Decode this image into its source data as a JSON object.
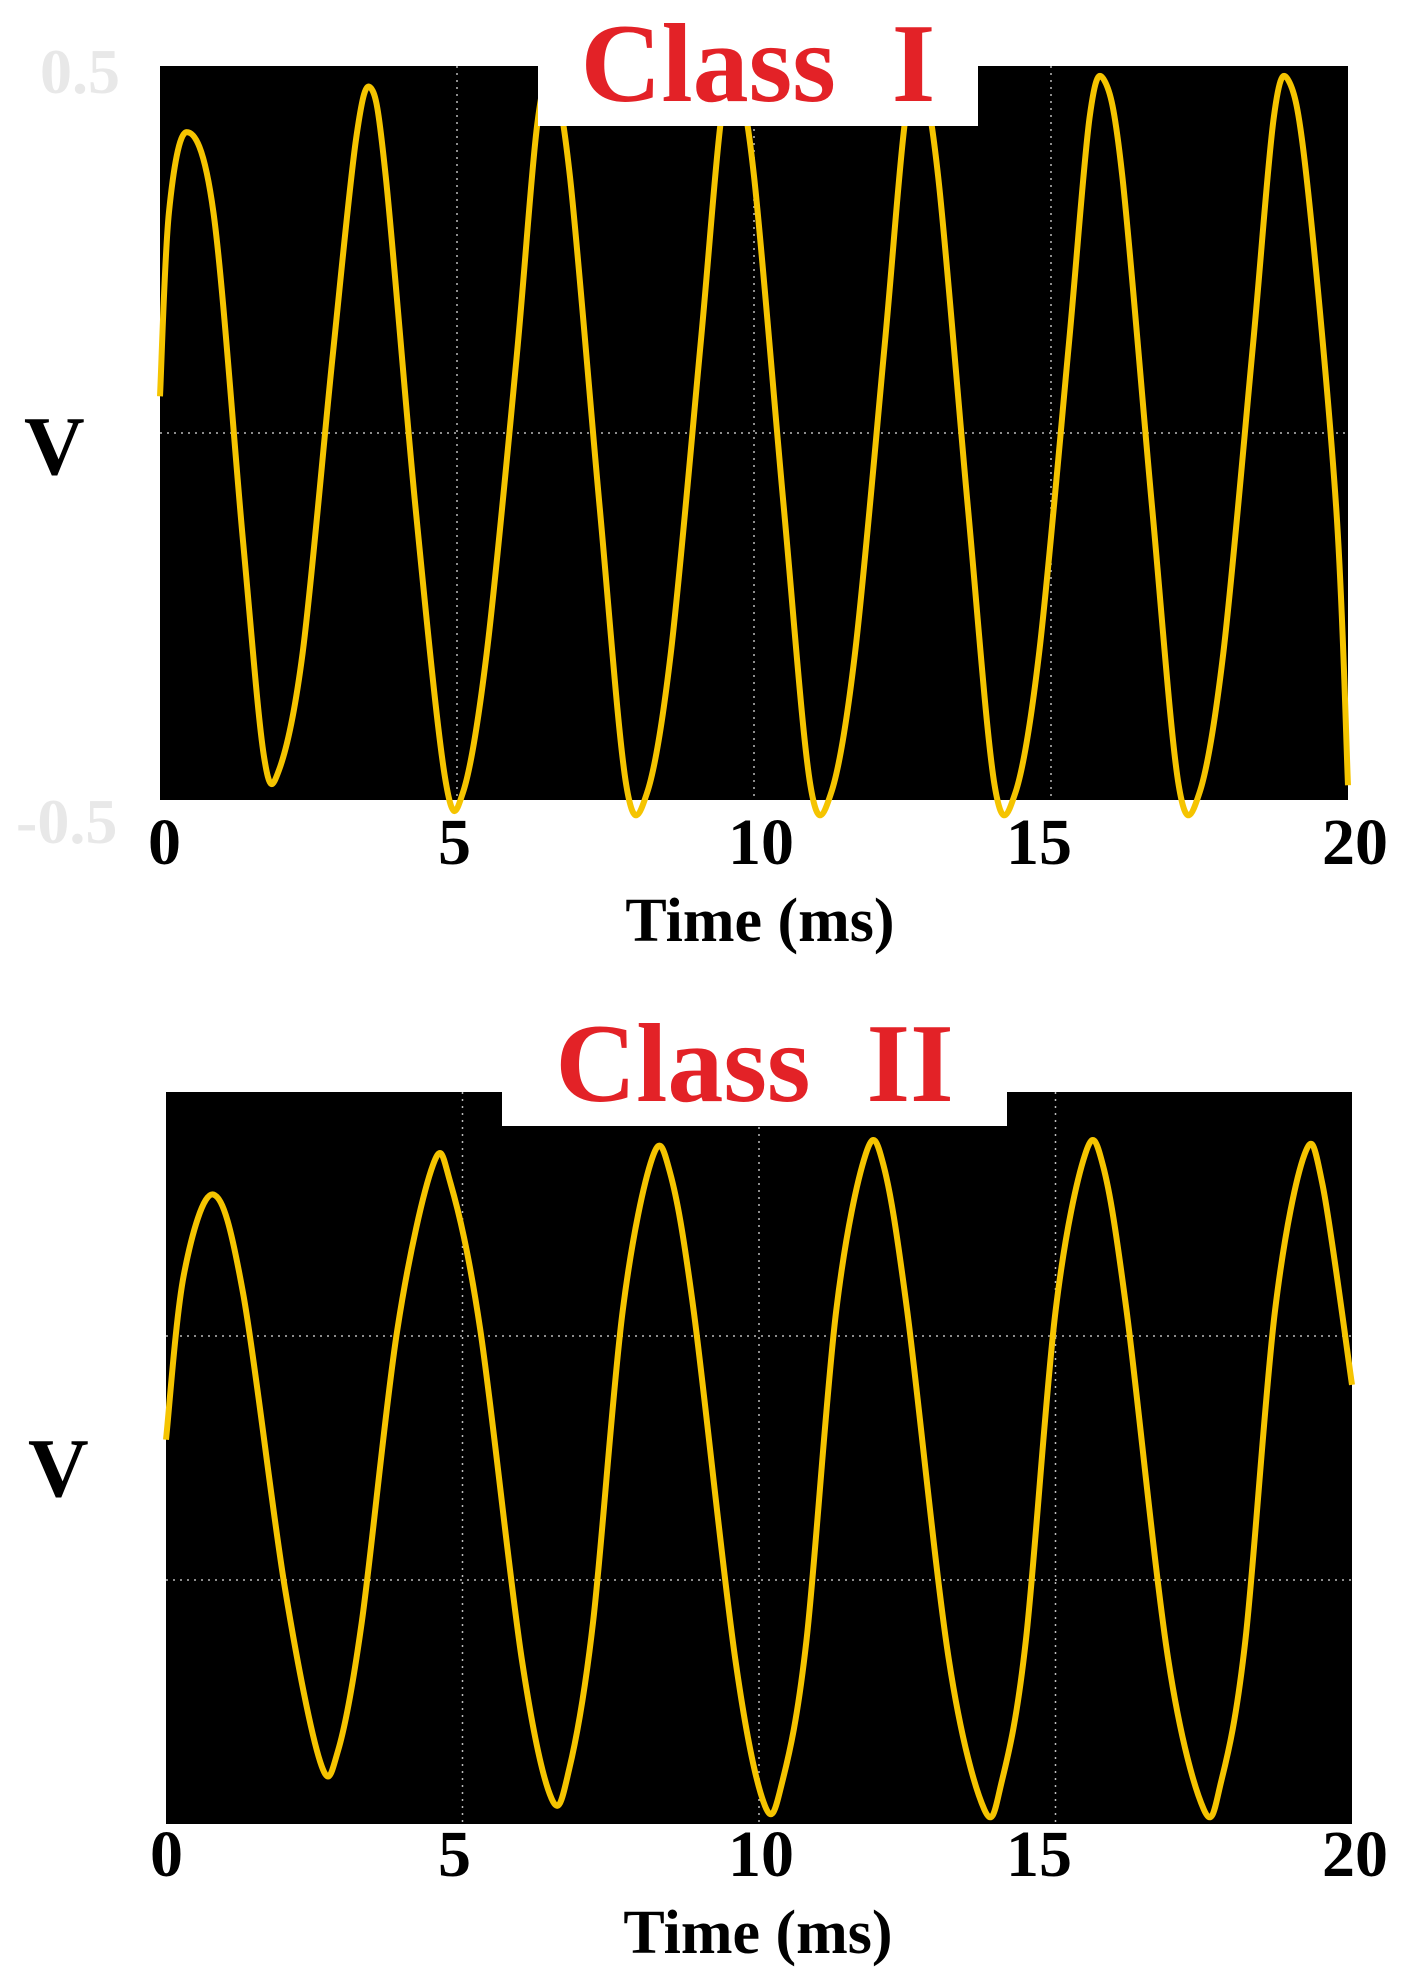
{
  "chart_data": [
    {
      "type": "line",
      "title": "Class  I",
      "ylabel": "V",
      "xlabel": "Time (ms)",
      "xlim": [
        0,
        20
      ],
      "ylim": [
        -0.5,
        0.5
      ],
      "xticks": [
        "0",
        "5",
        "10",
        "15",
        "20"
      ],
      "yticks_faint": [
        "0.5",
        "-0.5"
      ],
      "grid": true,
      "background": "#000000",
      "line_color": "#f5c400",
      "series": [
        {
          "x": [
            0,
            0.15,
            0.45,
            0.9,
            1.4,
            1.75,
            2.0,
            2.4,
            2.9,
            3.3,
            3.55,
            3.8,
            4.3,
            4.8,
            5.1,
            5.5,
            6.0,
            6.35,
            6.6,
            6.9,
            7.4,
            7.85,
            8.2,
            8.6,
            9.1,
            9.45,
            9.7,
            10.0,
            10.5,
            10.95,
            11.3,
            11.7,
            12.2,
            12.55,
            12.8,
            13.1,
            13.6,
            14.05,
            14.4,
            14.8,
            15.3,
            15.65,
            15.9,
            16.2,
            16.7,
            17.15,
            17.5,
            17.9,
            18.4,
            18.75,
            19.0,
            19.3,
            19.8,
            20.0
          ],
          "y": [
            0.05,
            0.3,
            0.41,
            0.3,
            -0.15,
            -0.44,
            -0.46,
            -0.3,
            0.1,
            0.4,
            0.47,
            0.35,
            -0.1,
            -0.47,
            -0.49,
            -0.3,
            0.1,
            0.42,
            0.48,
            0.35,
            -0.1,
            -0.48,
            -0.49,
            -0.3,
            0.12,
            0.43,
            0.48,
            0.35,
            -0.1,
            -0.48,
            -0.49,
            -0.3,
            0.12,
            0.43,
            0.48,
            0.35,
            -0.1,
            -0.48,
            -0.49,
            -0.3,
            0.12,
            0.43,
            0.48,
            0.35,
            -0.1,
            -0.48,
            -0.49,
            -0.3,
            0.12,
            0.43,
            0.48,
            0.35,
            -0.1,
            -0.48
          ]
        }
      ]
    },
    {
      "type": "line",
      "title": "Class  II",
      "ylabel": "V",
      "xlabel": "Time (ms)",
      "xlim": [
        0,
        20
      ],
      "ylim": [
        -1,
        1
      ],
      "xticks": [
        "0",
        "5",
        "10",
        "15",
        "20"
      ],
      "grid": true,
      "background": "#000000",
      "line_color": "#f5c400",
      "series": [
        {
          "x": [
            0,
            0.3,
            0.8,
            1.3,
            2.0,
            2.6,
            2.9,
            3.3,
            3.9,
            4.5,
            4.8,
            5.3,
            6.0,
            6.5,
            6.8,
            7.2,
            7.7,
            8.2,
            8.5,
            8.9,
            9.6,
            10.1,
            10.4,
            10.8,
            11.3,
            11.8,
            12.1,
            12.5,
            13.2,
            13.8,
            14.1,
            14.5,
            15.0,
            15.5,
            15.8,
            16.2,
            16.9,
            17.5,
            17.8,
            18.2,
            18.7,
            19.2,
            19.5,
            20.0
          ],
          "y": [
            0.05,
            0.5,
            0.72,
            0.45,
            -0.35,
            -0.83,
            -0.8,
            -0.45,
            0.35,
            0.8,
            0.75,
            0.35,
            -0.55,
            -0.93,
            -0.85,
            -0.45,
            0.4,
            0.82,
            0.78,
            0.4,
            -0.55,
            -0.95,
            -0.88,
            -0.5,
            0.4,
            0.83,
            0.8,
            0.4,
            -0.55,
            -0.96,
            -0.88,
            -0.5,
            0.4,
            0.83,
            0.8,
            0.4,
            -0.55,
            -0.96,
            -0.88,
            -0.5,
            0.4,
            0.83,
            0.75,
            0.2
          ]
        }
      ]
    }
  ]
}
